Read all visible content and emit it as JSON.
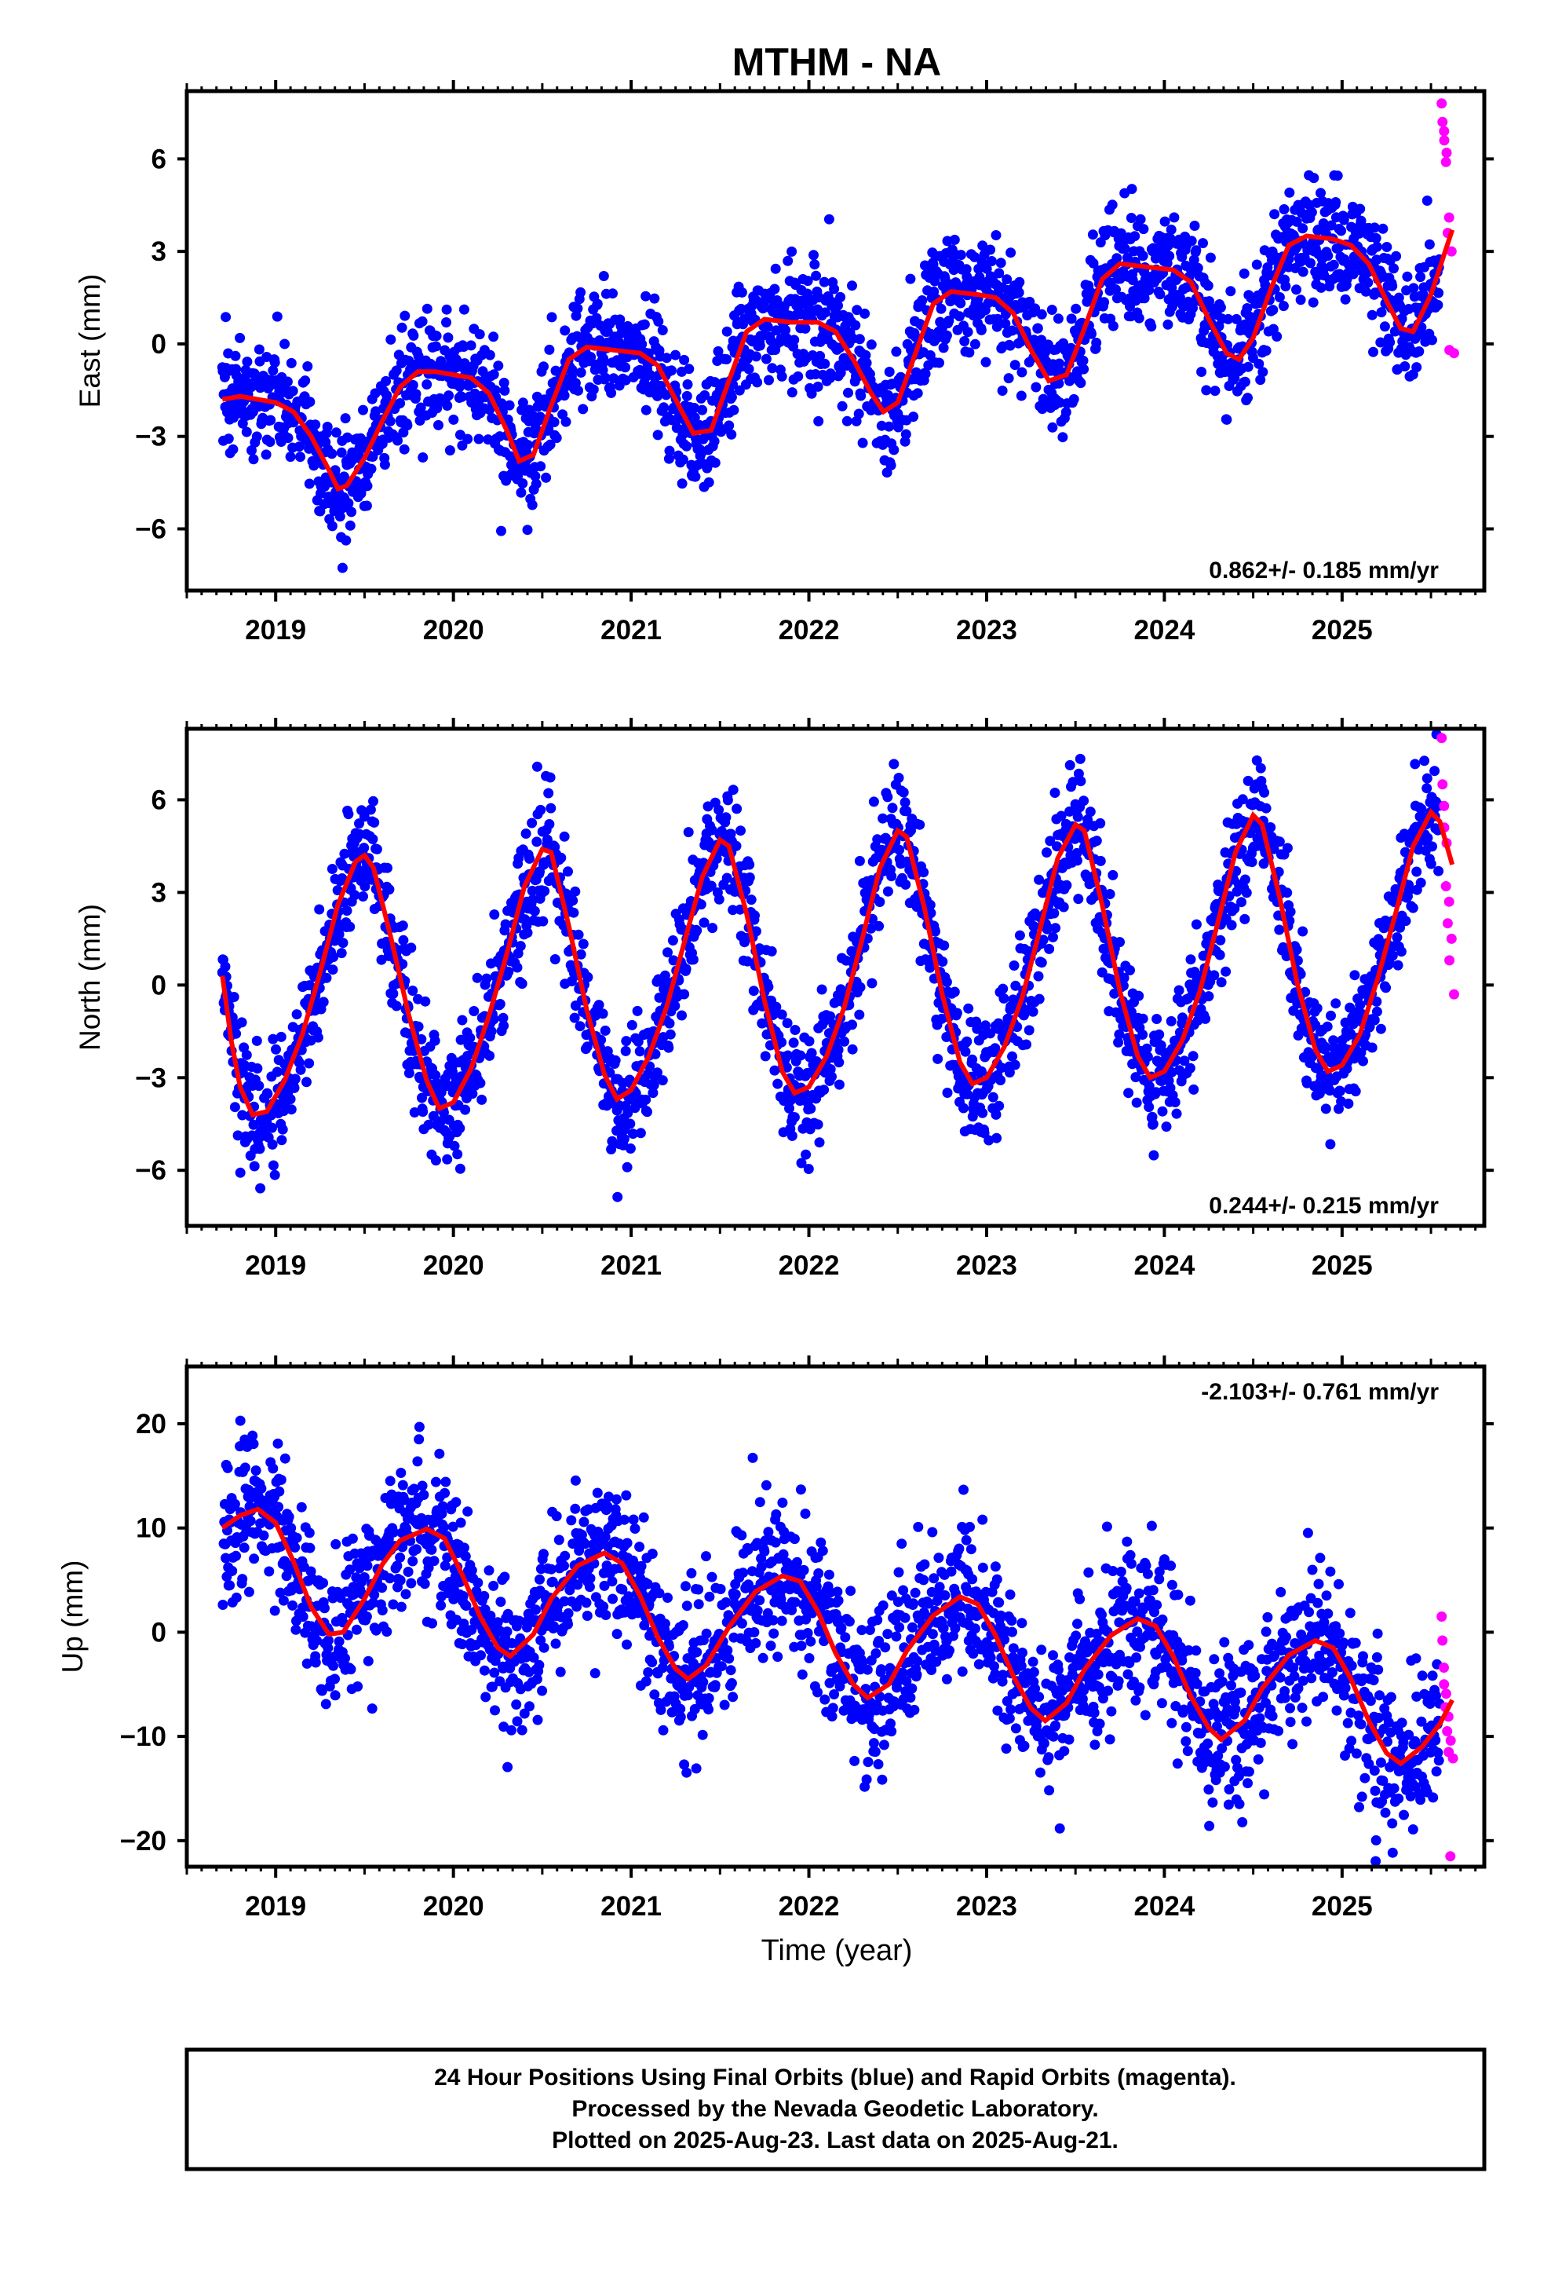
{
  "chart_data": {
    "title": "MTHM - NA",
    "type": "scatter",
    "xlabel": "Time (year)",
    "x_tick_labels": [
      "2019",
      "2020",
      "2021",
      "2022",
      "2023",
      "2024",
      "2025"
    ],
    "xlim": [
      2018.5,
      2025.8
    ],
    "grid": false,
    "colors": {
      "final": "#0000ff",
      "rapid": "#ff00ff",
      "model": "#ff0000"
    },
    "panels": [
      {
        "name": "east",
        "ylabel": "East (mm)",
        "ylim": [
          -8,
          8.2
        ],
        "yticks": [
          -6,
          -3,
          0,
          3,
          6
        ],
        "y_tick_labels": [
          "−6",
          "−3",
          "0",
          "3",
          "6"
        ],
        "rate_label": "0.862+/- 0.185 mm/yr",
        "rate_position": "bottom-right",
        "data_start": 2018.7,
        "data_end": 2025.55,
        "rapid_start": 2025.56,
        "rapid_end": 2025.63,
        "trend_mm_per_yr": 0.862,
        "noise_sd_mm": 0.95,
        "model_curve": [
          [
            2018.7,
            -1.8
          ],
          [
            2018.8,
            -1.7
          ],
          [
            2018.9,
            -1.8
          ],
          [
            2019.0,
            -1.9
          ],
          [
            2019.1,
            -2.2
          ],
          [
            2019.2,
            -3.0
          ],
          [
            2019.3,
            -4.1
          ],
          [
            2019.35,
            -4.7
          ],
          [
            2019.4,
            -4.6
          ],
          [
            2019.5,
            -3.7
          ],
          [
            2019.6,
            -2.5
          ],
          [
            2019.7,
            -1.4
          ],
          [
            2019.8,
            -0.9
          ],
          [
            2019.9,
            -0.9
          ],
          [
            2020.0,
            -1.0
          ],
          [
            2020.1,
            -1.1
          ],
          [
            2020.2,
            -1.6
          ],
          [
            2020.3,
            -2.8
          ],
          [
            2020.37,
            -3.8
          ],
          [
            2020.45,
            -3.6
          ],
          [
            2020.55,
            -2.0
          ],
          [
            2020.65,
            -0.5
          ],
          [
            2020.75,
            -0.1
          ],
          [
            2020.9,
            -0.2
          ],
          [
            2021.05,
            -0.3
          ],
          [
            2021.15,
            -0.7
          ],
          [
            2021.25,
            -1.8
          ],
          [
            2021.35,
            -2.9
          ],
          [
            2021.45,
            -2.8
          ],
          [
            2021.55,
            -1.2
          ],
          [
            2021.65,
            0.4
          ],
          [
            2021.75,
            0.8
          ],
          [
            2021.9,
            0.7
          ],
          [
            2022.05,
            0.7
          ],
          [
            2022.15,
            0.4
          ],
          [
            2022.25,
            -0.5
          ],
          [
            2022.35,
            -1.6
          ],
          [
            2022.42,
            -2.2
          ],
          [
            2022.5,
            -1.9
          ],
          [
            2022.6,
            -0.3
          ],
          [
            2022.7,
            1.3
          ],
          [
            2022.8,
            1.7
          ],
          [
            2022.95,
            1.6
          ],
          [
            2023.05,
            1.5
          ],
          [
            2023.15,
            1.0
          ],
          [
            2023.25,
            -0.2
          ],
          [
            2023.35,
            -1.2
          ],
          [
            2023.45,
            -1.0
          ],
          [
            2023.55,
            0.5
          ],
          [
            2023.65,
            2.1
          ],
          [
            2023.75,
            2.6
          ],
          [
            2023.9,
            2.5
          ],
          [
            2024.05,
            2.4
          ],
          [
            2024.15,
            2.0
          ],
          [
            2024.25,
            0.8
          ],
          [
            2024.35,
            -0.3
          ],
          [
            2024.42,
            -0.5
          ],
          [
            2024.5,
            0.2
          ],
          [
            2024.6,
            1.8
          ],
          [
            2024.7,
            3.2
          ],
          [
            2024.8,
            3.5
          ],
          [
            2024.95,
            3.4
          ],
          [
            2025.05,
            3.2
          ],
          [
            2025.15,
            2.6
          ],
          [
            2025.25,
            1.4
          ],
          [
            2025.33,
            0.5
          ],
          [
            2025.4,
            0.4
          ],
          [
            2025.5,
            1.6
          ],
          [
            2025.62,
            3.7
          ]
        ],
        "rapid_points": [
          7.8,
          7.2,
          6.9,
          6.6,
          6.2,
          5.9,
          4.1,
          3.6,
          3.0,
          -0.2,
          -0.3
        ]
      },
      {
        "name": "north",
        "ylabel": "North (mm)",
        "ylim": [
          -7.8,
          8.3
        ],
        "yticks": [
          -6,
          -3,
          0,
          3,
          6
        ],
        "y_tick_labels": [
          "−6",
          "−3",
          "0",
          "3",
          "6"
        ],
        "rate_label": "0.244+/- 0.215 mm/yr",
        "rate_position": "bottom-right",
        "data_start": 2018.7,
        "data_end": 2025.55,
        "rapid_start": 2025.56,
        "rapid_end": 2025.63,
        "trend_mm_per_yr": 0.244,
        "noise_sd_mm": 1.0,
        "model_curve": [
          [
            2018.7,
            0.3
          ],
          [
            2018.75,
            -1.8
          ],
          [
            2018.8,
            -3.3
          ],
          [
            2018.87,
            -4.2
          ],
          [
            2018.95,
            -4.1
          ],
          [
            2019.05,
            -3.1
          ],
          [
            2019.15,
            -1.6
          ],
          [
            2019.25,
            0.4
          ],
          [
            2019.35,
            2.6
          ],
          [
            2019.45,
            4.0
          ],
          [
            2019.5,
            4.2
          ],
          [
            2019.55,
            3.8
          ],
          [
            2019.65,
            1.5
          ],
          [
            2019.75,
            -1.0
          ],
          [
            2019.85,
            -3.1
          ],
          [
            2019.92,
            -4.0
          ],
          [
            2020.0,
            -3.8
          ],
          [
            2020.1,
            -2.7
          ],
          [
            2020.2,
            -1.0
          ],
          [
            2020.3,
            1.0
          ],
          [
            2020.4,
            3.2
          ],
          [
            2020.5,
            4.4
          ],
          [
            2020.55,
            4.3
          ],
          [
            2020.65,
            1.9
          ],
          [
            2020.75,
            -0.8
          ],
          [
            2020.85,
            -2.9
          ],
          [
            2020.92,
            -3.7
          ],
          [
            2021.0,
            -3.4
          ],
          [
            2021.1,
            -2.3
          ],
          [
            2021.2,
            -0.7
          ],
          [
            2021.3,
            1.4
          ],
          [
            2021.4,
            3.5
          ],
          [
            2021.5,
            4.7
          ],
          [
            2021.55,
            4.5
          ],
          [
            2021.65,
            2.3
          ],
          [
            2021.75,
            -0.5
          ],
          [
            2021.85,
            -2.8
          ],
          [
            2021.92,
            -3.5
          ],
          [
            2022.0,
            -3.3
          ],
          [
            2022.1,
            -2.3
          ],
          [
            2022.2,
            -0.7
          ],
          [
            2022.3,
            1.5
          ],
          [
            2022.4,
            3.8
          ],
          [
            2022.5,
            5.0
          ],
          [
            2022.55,
            4.8
          ],
          [
            2022.65,
            2.5
          ],
          [
            2022.75,
            -0.3
          ],
          [
            2022.85,
            -2.5
          ],
          [
            2022.92,
            -3.2
          ],
          [
            2023.0,
            -3.0
          ],
          [
            2023.1,
            -2.0
          ],
          [
            2023.2,
            -0.4
          ],
          [
            2023.3,
            1.8
          ],
          [
            2023.4,
            4.1
          ],
          [
            2023.5,
            5.2
          ],
          [
            2023.55,
            5.0
          ],
          [
            2023.65,
            2.6
          ],
          [
            2023.75,
            -0.2
          ],
          [
            2023.85,
            -2.3
          ],
          [
            2023.92,
            -3.0
          ],
          [
            2024.0,
            -2.8
          ],
          [
            2024.1,
            -1.8
          ],
          [
            2024.2,
            -0.2
          ],
          [
            2024.3,
            2.0
          ],
          [
            2024.4,
            4.3
          ],
          [
            2024.5,
            5.5
          ],
          [
            2024.55,
            5.2
          ],
          [
            2024.65,
            2.8
          ],
          [
            2024.75,
            0.0
          ],
          [
            2024.85,
            -2.1
          ],
          [
            2024.92,
            -2.8
          ],
          [
            2025.0,
            -2.6
          ],
          [
            2025.1,
            -1.6
          ],
          [
            2025.2,
            0.2
          ],
          [
            2025.3,
            2.3
          ],
          [
            2025.4,
            4.5
          ],
          [
            2025.5,
            5.6
          ],
          [
            2025.55,
            5.3
          ],
          [
            2025.62,
            3.9
          ]
        ],
        "rapid_points": [
          8.0,
          6.5,
          5.8,
          5.1,
          4.6,
          3.2,
          2.7,
          2.0,
          1.5,
          0.8,
          -0.3
        ]
      },
      {
        "name": "up",
        "ylabel": "Up (mm)",
        "ylim": [
          -22.5,
          25.5
        ],
        "yticks": [
          -20,
          -10,
          0,
          10,
          20
        ],
        "y_tick_labels": [
          "−20",
          "−10",
          "0",
          "10",
          "20"
        ],
        "rate_label": "-2.103+/- 0.761 mm/yr",
        "rate_position": "top-right",
        "data_start": 2018.7,
        "data_end": 2025.55,
        "rapid_start": 2025.56,
        "rapid_end": 2025.63,
        "trend_mm_per_yr": -2.103,
        "noise_sd_mm": 3.6,
        "model_curve": [
          [
            2018.7,
            10.0
          ],
          [
            2018.8,
            11.2
          ],
          [
            2018.9,
            11.8
          ],
          [
            2019.0,
            10.5
          ],
          [
            2019.1,
            6.8
          ],
          [
            2019.2,
            2.4
          ],
          [
            2019.3,
            -0.2
          ],
          [
            2019.38,
            0.0
          ],
          [
            2019.5,
            3.2
          ],
          [
            2019.6,
            6.5
          ],
          [
            2019.7,
            8.8
          ],
          [
            2019.85,
            9.9
          ],
          [
            2019.95,
            9.0
          ],
          [
            2020.05,
            5.5
          ],
          [
            2020.15,
            1.5
          ],
          [
            2020.25,
            -1.5
          ],
          [
            2020.32,
            -2.3
          ],
          [
            2020.45,
            -0.2
          ],
          [
            2020.55,
            3.2
          ],
          [
            2020.7,
            6.4
          ],
          [
            2020.85,
            7.6
          ],
          [
            2020.95,
            6.6
          ],
          [
            2021.05,
            3.5
          ],
          [
            2021.15,
            -0.5
          ],
          [
            2021.25,
            -3.5
          ],
          [
            2021.32,
            -4.5
          ],
          [
            2021.42,
            -3.2
          ],
          [
            2021.55,
            0.5
          ],
          [
            2021.7,
            3.9
          ],
          [
            2021.85,
            5.4
          ],
          [
            2021.95,
            4.9
          ],
          [
            2022.05,
            2.0
          ],
          [
            2022.15,
            -2.0
          ],
          [
            2022.25,
            -5.0
          ],
          [
            2022.33,
            -6.3
          ],
          [
            2022.45,
            -5.0
          ],
          [
            2022.55,
            -1.8
          ],
          [
            2022.7,
            1.6
          ],
          [
            2022.85,
            3.4
          ],
          [
            2022.95,
            2.7
          ],
          [
            2023.05,
            -0.3
          ],
          [
            2023.15,
            -4.2
          ],
          [
            2023.25,
            -7.3
          ],
          [
            2023.33,
            -8.5
          ],
          [
            2023.45,
            -6.8
          ],
          [
            2023.55,
            -3.6
          ],
          [
            2023.7,
            -0.3
          ],
          [
            2023.85,
            1.3
          ],
          [
            2023.95,
            0.6
          ],
          [
            2024.05,
            -2.3
          ],
          [
            2024.15,
            -6.2
          ],
          [
            2024.25,
            -9.2
          ],
          [
            2024.32,
            -10.3
          ],
          [
            2024.45,
            -8.5
          ],
          [
            2024.55,
            -5.4
          ],
          [
            2024.7,
            -2.2
          ],
          [
            2024.85,
            -0.8
          ],
          [
            2024.95,
            -1.5
          ],
          [
            2025.05,
            -4.5
          ],
          [
            2025.15,
            -8.5
          ],
          [
            2025.25,
            -11.6
          ],
          [
            2025.33,
            -12.6
          ],
          [
            2025.45,
            -11.0
          ],
          [
            2025.55,
            -8.8
          ],
          [
            2025.62,
            -6.5
          ]
        ],
        "rapid_points": [
          1.5,
          -0.8,
          -3.4,
          -5.0,
          -5.9,
          -7.2,
          -8.1,
          -9.5,
          -10.4,
          -11.5,
          -12.1,
          -21.5
        ]
      }
    ]
  },
  "caption": {
    "line1": "24 Hour Positions Using Final Orbits (blue) and Rapid Orbits (magenta).",
    "line2": "Processed by the Nevada Geodetic Laboratory.",
    "line3": "Plotted on 2025-Aug-23. Last data on 2025-Aug-21."
  }
}
